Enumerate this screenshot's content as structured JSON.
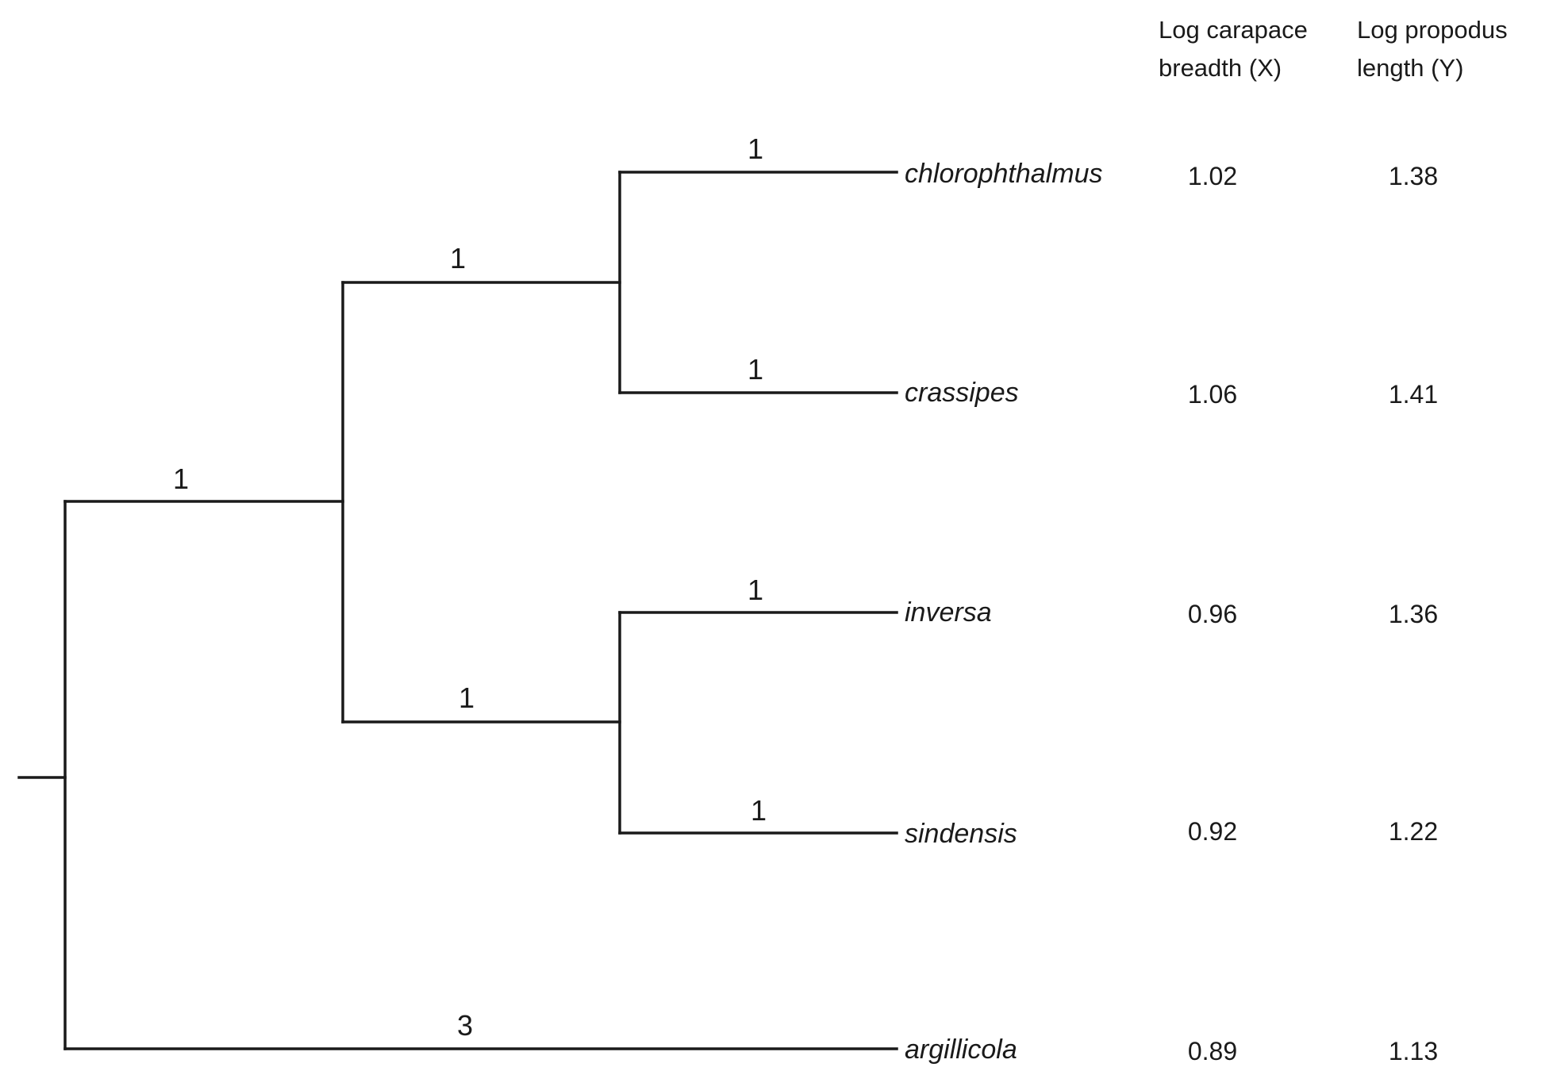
{
  "columns": [
    {
      "line1": "Log carapace",
      "line2": "breadth (X)"
    },
    {
      "line1": "Log propodus",
      "line2": "length (Y)"
    }
  ],
  "taxa": [
    {
      "name": "chlorophthalmus",
      "x": "1.02",
      "y": "1.38"
    },
    {
      "name": "crassipes",
      "x": "1.06",
      "y": "1.41"
    },
    {
      "name": "inversa",
      "x": "0.96",
      "y": "1.36"
    },
    {
      "name": "sindensis",
      "x": "0.92",
      "y": "1.22"
    },
    {
      "name": "argillicola",
      "x": "0.89",
      "y": "1.13"
    }
  ],
  "branch_lengths": {
    "chlorophthalmus": "1",
    "crassipes": "1",
    "inversa": "1",
    "sindensis": "1",
    "argillicola": "3",
    "clade_chloro_crassipes": "1",
    "clade_inversa_sindensis": "1",
    "clade_four_taxa": "1"
  }
}
